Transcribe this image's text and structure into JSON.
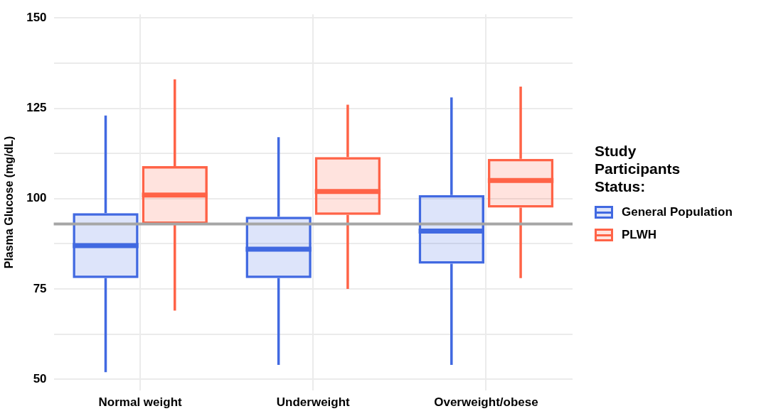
{
  "chart_data": {
    "type": "box",
    "ylabel": "Plasma Glucose (mg/dL)",
    "legend_title": "Study Participants Status:",
    "legend": "right",
    "grid": true,
    "categories": [
      "Normal weight",
      "Underweight",
      "Overweight/obese"
    ],
    "ylim": [
      47,
      151
    ],
    "yticks": [
      50,
      {
        "value": 62.5,
        "label": null
      },
      75,
      {
        "value": 87.5,
        "label": null
      },
      100,
      {
        "value": 112.5,
        "label": null
      },
      125,
      {
        "value": 137.5,
        "label": null
      },
      150
    ],
    "series": [
      {
        "name": "General Population",
        "color": "#4169e1",
        "boxes": [
          {
            "low": 52,
            "q1": 78,
            "median": 87,
            "q3": 96,
            "high": 123
          },
          {
            "low": 54,
            "q1": 78,
            "median": 86,
            "q3": 95,
            "high": 117
          },
          {
            "low": 54,
            "q1": 82,
            "median": 91,
            "q3": 101,
            "high": 128
          }
        ]
      },
      {
        "name": "PLWH",
        "color": "#ff6347",
        "boxes": [
          {
            "low": 69,
            "q1": 93,
            "median": 101,
            "q3": 109,
            "high": 133
          },
          {
            "low": 75,
            "q1": 95.5,
            "median": 102,
            "q3": 111.5,
            "high": 126
          },
          {
            "low": 78,
            "q1": 97.5,
            "median": 105,
            "q3": 111,
            "high": 131
          }
        ]
      }
    ],
    "ref_lines": [
      {
        "axis": "y",
        "value": 93,
        "color": "#a6a6a6"
      }
    ]
  }
}
